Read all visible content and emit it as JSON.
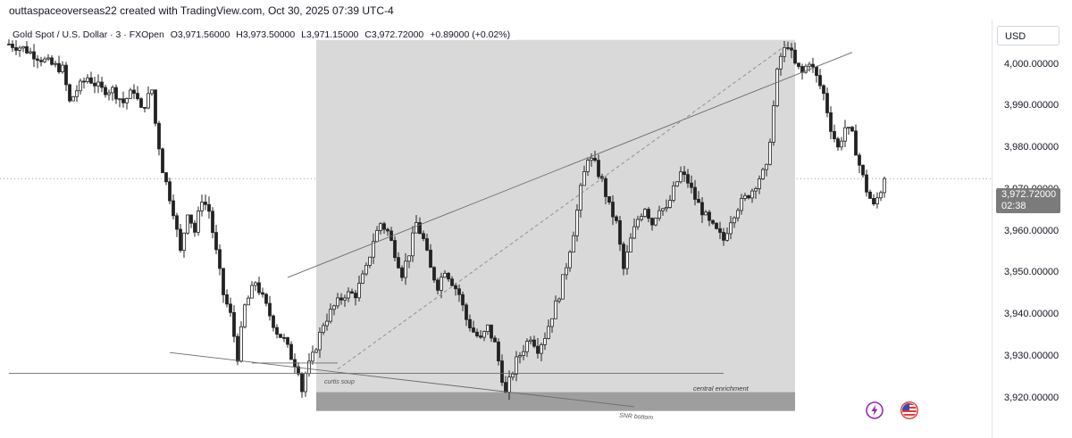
{
  "header": {
    "watermark": "outtaspaceoverseas22 created with TradingView.com, Oct 30, 2025 07:39 UTC-4"
  },
  "legend": {
    "symbol": "Gold Spot / U.S. Dollar · 3 · FXOpen",
    "open": "O3,971.56000",
    "high": "H3,973.50000",
    "low": "L3,971.15000",
    "close": "C3,972.72000",
    "change": "+0.89000 (+0.02%)"
  },
  "price_axis": {
    "currency_label": "USD",
    "last_price_label": "3,972.72000",
    "countdown": "02:38"
  },
  "annotations": {
    "curtis_label": "curtis soup",
    "central_label": "central enrichment",
    "snr_label": "SNR bottom"
  },
  "colors": {
    "candle": "#222222",
    "zone_fill": "#d9d9d9",
    "snr_fill": "#9e9e9e",
    "price_tag": "#7b7b7b",
    "lightning_icon": "#9c27b0",
    "flag_icon": "#e53935"
  },
  "icons": [
    "lightning-icon",
    "us-flag-icon"
  ],
  "chart_data": {
    "type": "candlestick",
    "title": "Gold Spot / U.S. Dollar · 3 · FXOpen",
    "ylim": [
      3915,
      4007
    ],
    "y_ticks": [
      {
        "value": 4000,
        "label": "4,000.00000"
      },
      {
        "value": 3990,
        "label": "3,990.00000"
      },
      {
        "value": 3980,
        "label": "3,980.00000"
      },
      {
        "value": 3970,
        "label": "3,970.00000"
      },
      {
        "value": 3960,
        "label": "3,960.00000"
      },
      {
        "value": 3950,
        "label": "3,950.00000"
      },
      {
        "value": 3940,
        "label": "3,940.00000"
      },
      {
        "value": 3930,
        "label": "3,930.00000"
      },
      {
        "value": 3920,
        "label": "3,920.00000"
      }
    ],
    "last_price": 3972.72,
    "close_path": [
      [
        0,
        4005
      ],
      [
        4,
        4004
      ],
      [
        8,
        4002
      ],
      [
        12,
        4000
      ],
      [
        15,
        3999
      ],
      [
        17,
        3991
      ],
      [
        19,
        3994
      ],
      [
        22,
        3997
      ],
      [
        26,
        3994
      ],
      [
        29,
        3994
      ],
      [
        32,
        3991
      ],
      [
        35,
        3994
      ],
      [
        37,
        3989
      ],
      [
        40,
        3994
      ],
      [
        41,
        3986
      ],
      [
        43,
        3975
      ],
      [
        46,
        3965
      ],
      [
        48,
        3955
      ],
      [
        50,
        3965
      ],
      [
        52,
        3960
      ],
      [
        54,
        3968
      ],
      [
        56,
        3965
      ],
      [
        58,
        3955
      ],
      [
        60,
        3945
      ],
      [
        62,
        3940
      ],
      [
        64,
        3930
      ],
      [
        66,
        3942
      ],
      [
        69,
        3948
      ],
      [
        71,
        3944
      ],
      [
        73,
        3940
      ],
      [
        75,
        3936
      ],
      [
        77,
        3934
      ],
      [
        79,
        3930
      ],
      [
        81,
        3927
      ],
      [
        82,
        3922
      ],
      [
        83,
        3926
      ],
      [
        85,
        3930
      ],
      [
        88,
        3938
      ],
      [
        91,
        3942
      ],
      [
        94,
        3945
      ],
      [
        97,
        3945
      ],
      [
        100,
        3951
      ],
      [
        102,
        3958
      ],
      [
        104,
        3962
      ],
      [
        106,
        3960
      ],
      [
        108,
        3955
      ],
      [
        110,
        3950
      ],
      [
        112,
        3955
      ],
      [
        114,
        3962
      ],
      [
        116,
        3958
      ],
      [
        118,
        3951
      ],
      [
        120,
        3947
      ],
      [
        122,
        3951
      ],
      [
        124,
        3948
      ],
      [
        126,
        3945
      ],
      [
        128,
        3939
      ],
      [
        130,
        3936
      ],
      [
        132,
        3934
      ],
      [
        134,
        3937
      ],
      [
        136,
        3933
      ],
      [
        137,
        3929
      ],
      [
        139,
        3921
      ],
      [
        140,
        3924
      ],
      [
        142,
        3929
      ],
      [
        144,
        3932
      ],
      [
        146,
        3935
      ],
      [
        148,
        3932
      ],
      [
        150,
        3935
      ],
      [
        152,
        3940
      ],
      [
        154,
        3945
      ],
      [
        156,
        3952
      ],
      [
        158,
        3960
      ],
      [
        160,
        3970
      ],
      [
        162,
        3978
      ],
      [
        164,
        3976
      ],
      [
        166,
        3972
      ],
      [
        168,
        3966
      ],
      [
        170,
        3962
      ],
      [
        172,
        3951
      ],
      [
        174,
        3958
      ],
      [
        176,
        3963
      ],
      [
        178,
        3966
      ],
      [
        180,
        3962
      ],
      [
        182,
        3966
      ],
      [
        184,
        3965
      ],
      [
        186,
        3970
      ],
      [
        188,
        3974
      ],
      [
        190,
        3972
      ],
      [
        192,
        3968
      ],
      [
        194,
        3965
      ],
      [
        196,
        3962
      ],
      [
        198,
        3960
      ],
      [
        200,
        3958
      ],
      [
        202,
        3963
      ],
      [
        204,
        3966
      ],
      [
        206,
        3968
      ],
      [
        208,
        3970
      ],
      [
        210,
        3973
      ],
      [
        212,
        3975
      ],
      [
        214,
        3990
      ],
      [
        215,
        3998
      ],
      [
        216,
        4002
      ],
      [
        218,
        4005
      ],
      [
        220,
        4000
      ],
      [
        222,
        3998
      ],
      [
        224,
        4001
      ],
      [
        226,
        3997
      ],
      [
        228,
        3993
      ],
      [
        230,
        3985
      ],
      [
        232,
        3980
      ],
      [
        234,
        3985
      ],
      [
        236,
        3983
      ],
      [
        238,
        3976
      ],
      [
        240,
        3970
      ],
      [
        242,
        3966
      ],
      [
        244,
        3970
      ],
      [
        245,
        3972.72
      ]
    ],
    "lines": [
      {
        "from": [
          78,
          3949
        ],
        "to": [
          236,
          4003
        ],
        "style": "solid"
      },
      {
        "from": [
          92,
          3927
        ],
        "to": [
          218,
          4005
        ],
        "style": "dashed"
      },
      {
        "from": [
          45,
          3931
        ],
        "to": [
          175,
          3918
        ],
        "style": "solid"
      },
      {
        "from": [
          0,
          3926
        ],
        "to": [
          200,
          3926
        ],
        "style": "solid"
      },
      {
        "from": [
          68,
          3928.5
        ],
        "to": [
          92,
          3928.5
        ],
        "style": "solid"
      }
    ],
    "zones": [
      {
        "x_range": [
          86,
          220
        ],
        "y_range": [
          3917,
          4006
        ],
        "kind": "range-box"
      },
      {
        "x_range": [
          86,
          220
        ],
        "y_range": [
          3917,
          3921.5
        ],
        "kind": "snr-box"
      }
    ]
  }
}
